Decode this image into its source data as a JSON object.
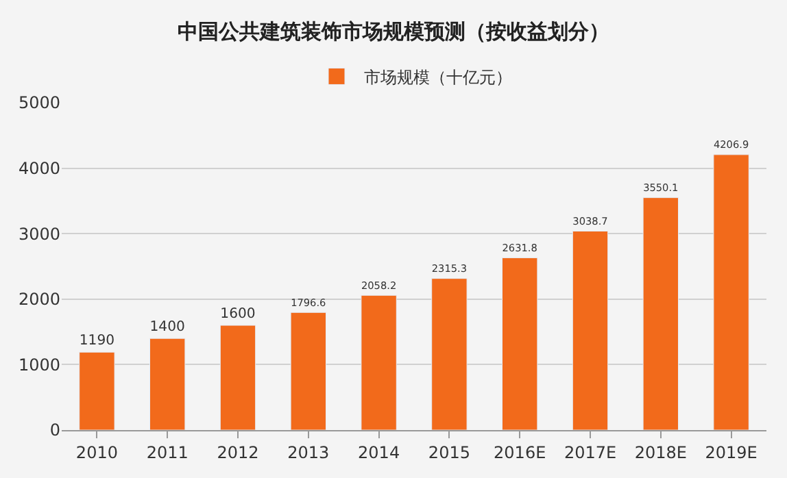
{
  "chart_data": {
    "type": "bar",
    "title": "中国公共建筑装饰市场规模预测（按收益划分）",
    "categories": [
      "2010",
      "2011",
      "2012",
      "2013",
      "2014",
      "2015",
      "2016E",
      "2017E",
      "2018E",
      "2019E"
    ],
    "series": [
      {
        "name": "市场规模（十亿元）",
        "color": "#f26a1b",
        "values": [
          1190,
          1400,
          1600,
          1796.6,
          2058.2,
          2315.3,
          2631.8,
          3038.7,
          3550.1,
          4206.9
        ]
      }
    ],
    "ylim": [
      0,
      5000
    ],
    "yticks": [
      0,
      1000,
      2000,
      3000,
      4000,
      5000
    ],
    "grid": "y",
    "legend": "top",
    "data_labels": true
  }
}
